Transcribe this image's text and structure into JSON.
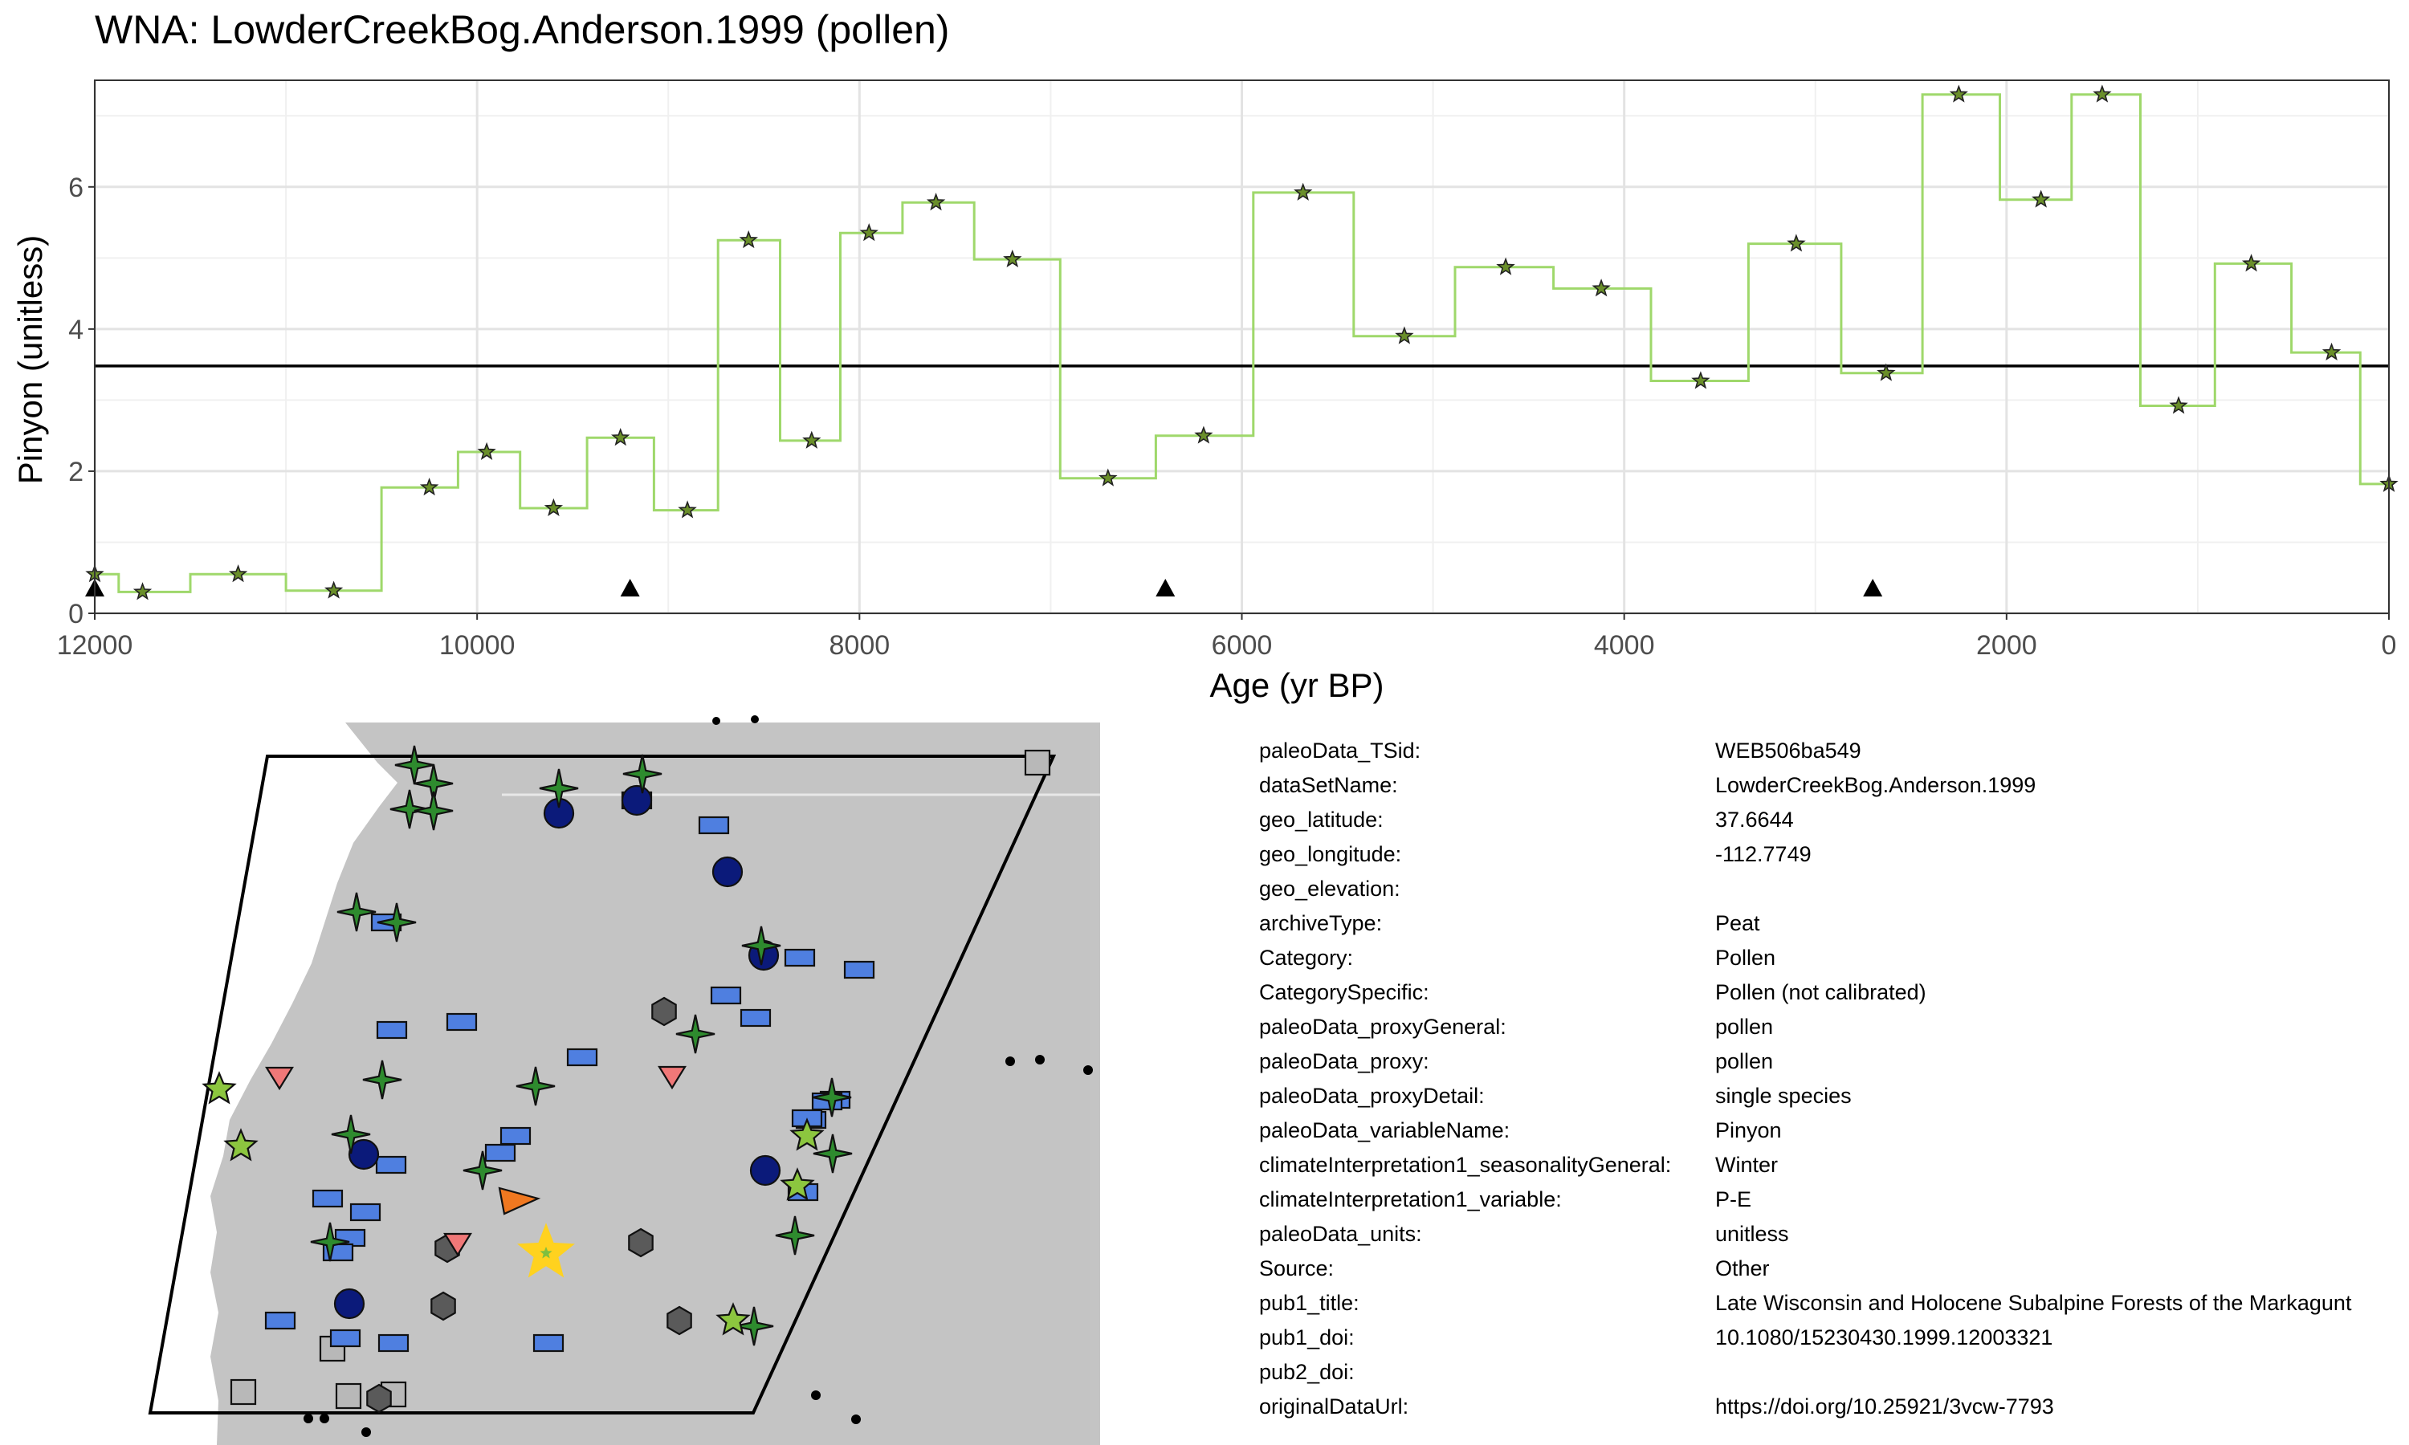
{
  "title": "WNA: LowderCreekBog.Anderson.1999 (pollen)",
  "chart_data": {
    "type": "line",
    "step": true,
    "xlabel": "Age (yr BP)",
    "ylabel": "Pinyon (unitless)",
    "xlim": [
      12000,
      0
    ],
    "x_reversed": true,
    "ylim": [
      0,
      7.5
    ],
    "x_ticks": [
      12000,
      10000,
      8000,
      6000,
      4000,
      2000,
      0
    ],
    "y_ticks": [
      0,
      2,
      4,
      6
    ],
    "grid": true,
    "line_color": "#9fd86b",
    "hline": 3.48,
    "series": [
      {
        "x": [
          12000,
          11750,
          11250,
          10750,
          10250,
          9950,
          9600,
          9250,
          8900,
          8580,
          8250,
          7950,
          7600,
          7200,
          6700,
          6200,
          5680,
          5150,
          4620,
          4120,
          3600,
          3100,
          2630,
          2250,
          1820,
          1500,
          1100,
          720,
          300,
          0
        ],
        "y": [
          0.55,
          0.3,
          0.55,
          0.32,
          1.77,
          2.27,
          1.48,
          2.47,
          1.45,
          5.25,
          2.43,
          5.35,
          5.78,
          4.98,
          1.9,
          2.5,
          5.92,
          3.9,
          4.87,
          4.57,
          3.27,
          5.2,
          3.38,
          7.3,
          5.82,
          7.3,
          2.92,
          4.92,
          3.67,
          1.82
        ]
      }
    ],
    "triangle_markers_x": [
      12000,
      9200,
      6400,
      2700
    ]
  },
  "metadata": [
    {
      "key": "paleoData_TSid:",
      "value": "WEB506ba549"
    },
    {
      "key": "dataSetName:",
      "value": "LowderCreekBog.Anderson.1999"
    },
    {
      "key": "geo_latitude:",
      "value": "37.6644"
    },
    {
      "key": "geo_longitude:",
      "value": "-112.7749"
    },
    {
      "key": "geo_elevation:",
      "value": ""
    },
    {
      "key": "archiveType:",
      "value": "Peat"
    },
    {
      "key": "Category:",
      "value": "Pollen"
    },
    {
      "key": "CategorySpecific:",
      "value": "Pollen (not calibrated)"
    },
    {
      "key": "paleoData_proxyGeneral:",
      "value": "pollen"
    },
    {
      "key": "paleoData_proxy:",
      "value": "pollen"
    },
    {
      "key": "paleoData_proxyDetail:",
      "value": "single species"
    },
    {
      "key": "paleoData_variableName:",
      "value": "Pinyon"
    },
    {
      "key": "climateInterpretation1_seasonalityGeneral:",
      "value": "Winter"
    },
    {
      "key": "climateInterpretation1_variable:",
      "value": "P-E"
    },
    {
      "key": "paleoData_units:",
      "value": "unitless"
    },
    {
      "key": "Source:",
      "value": "Other"
    },
    {
      "key": "pub1_title:",
      "value": "Late Wisconsin and Holocene Subalpine Forests of the Markagunt"
    },
    {
      "key": "pub1_doi:",
      "value": "10.1080/15230430.1999.12003321"
    },
    {
      "key": "pub2_doi:",
      "value": ""
    },
    {
      "key": "originalDataUrl:",
      "value": "https://doi.org/10.25921/3vcw-7793"
    }
  ],
  "map": {
    "land_color": "#c4c4c4",
    "border_color": "#000000",
    "site_marker": "star",
    "site_color": "#ffd21f",
    "legend_colors": {
      "green_star4": "#2e8b2e",
      "light_green_star5": "#8cc63f",
      "blue_rect": "#4f7fe0",
      "navy_circle": "#0b1a7a",
      "grey_hexagon": "#5a5a5a",
      "light_grey_square": "#b8b8b8",
      "pink_triangle": "#f07878",
      "orange_triangle": "#f07820"
    }
  }
}
